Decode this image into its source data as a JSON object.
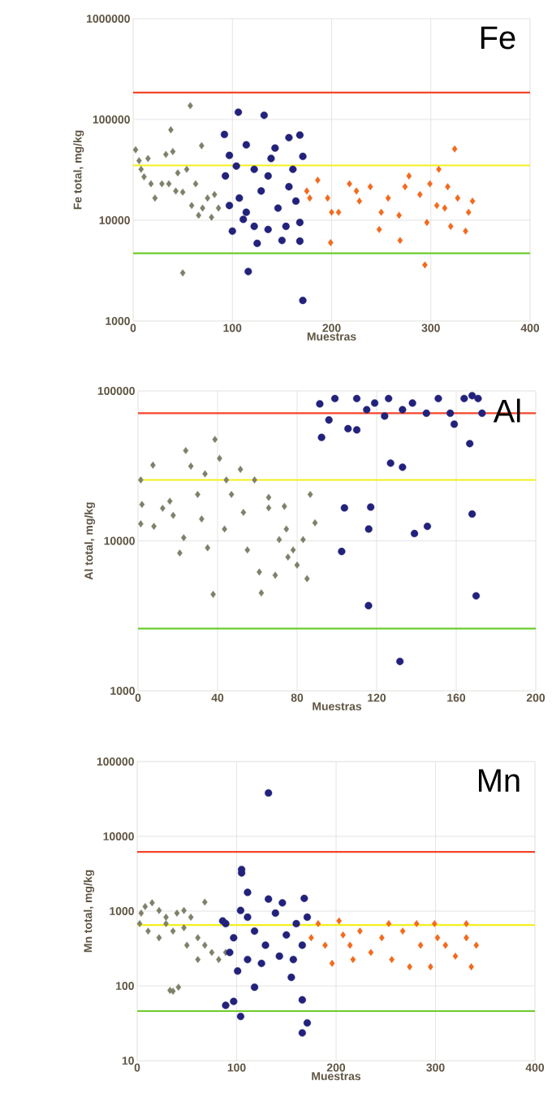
{
  "chart_data": [
    {
      "type": "scatter",
      "xlabel": "Muestras",
      "ylabel": "Fe total, mg/kg",
      "annotations": [
        "Fe"
      ],
      "log": "y",
      "grid": true,
      "xlim": [
        0,
        400
      ],
      "ylim": [
        1000,
        1000000
      ],
      "xticks": [
        0,
        100,
        200,
        300,
        400
      ],
      "yticks": [
        1000,
        10000,
        100000,
        1000000
      ],
      "ref_lines": [
        {
          "axis": "y",
          "value": 185000,
          "color": "#f4462a"
        },
        {
          "axis": "y",
          "value": 35000,
          "color": "#f2f01e"
        },
        {
          "axis": "y",
          "value": 4700,
          "color": "#6ccc2e"
        }
      ],
      "series": [
        {
          "color": "#7f806a",
          "marker": "diamond",
          "x": [
            57.6,
            38,
            69,
            50,
            2.5,
            8,
            15,
            22,
            29,
            40,
            45,
            50,
            59,
            66,
            79,
            82,
            75,
            54,
            33,
            11,
            18,
            6,
            36,
            63,
            70,
            86,
            43
          ],
          "values": [
            137000,
            79000,
            55000,
            3000,
            50000,
            32000,
            41000,
            16600,
            23000,
            48000,
            29500,
            19000,
            14000,
            11200,
            10700,
            18000,
            16600,
            32000,
            45000,
            27000,
            23000,
            39000,
            23000,
            23000,
            13200,
            13200,
            19500
          ]
        },
        {
          "color": "#22227c",
          "marker": "circle",
          "x": [
            106,
            132,
            92,
            116,
            171,
            168,
            157,
            171,
            114,
            97,
            93,
            100,
            125,
            150,
            168,
            168,
            136,
            114,
            107,
            129,
            146,
            157,
            104,
            139,
            122,
            154,
            136,
            111,
            161,
            143,
            122,
            97,
            164
          ],
          "values": [
            118000,
            110000,
            71000,
            3100,
            1600,
            70000,
            66000,
            43000,
            56000,
            44000,
            27500,
            7800,
            5900,
            6300,
            6200,
            9500,
            27500,
            12000,
            16600,
            19500,
            13200,
            21500,
            34500,
            41000,
            32000,
            8700,
            8100,
            10200,
            32000,
            52000,
            8700,
            14000,
            15500
          ]
        },
        {
          "color": "#f26a1e",
          "marker": "diamond",
          "x": [
            324,
            308,
            199,
            294,
            269,
            335,
            248,
            175,
            186,
            196,
            207,
            218,
            228,
            239,
            257,
            268,
            278,
            289,
            296,
            306,
            317,
            327,
            338,
            342,
            320,
            200,
            250,
            225,
            274,
            299,
            314,
            178
          ],
          "values": [
            51000,
            32000,
            6000,
            3600,
            6300,
            7800,
            8100,
            19500,
            25000,
            16600,
            12000,
            23000,
            15500,
            21500,
            16600,
            11200,
            27500,
            18000,
            9500,
            14000,
            21500,
            16600,
            12000,
            15500,
            8700,
            12000,
            12000,
            19500,
            21500,
            23000,
            13200,
            16600
          ]
        }
      ]
    },
    {
      "type": "scatter",
      "xlabel": "Muestras",
      "ylabel": "Al total, mg/kg",
      "annotations": [
        "Al"
      ],
      "log": "y",
      "grid": true,
      "xlim": [
        0,
        200
      ],
      "ylim": [
        1000,
        100000
      ],
      "xticks": [
        0,
        40,
        80,
        120,
        160,
        200
      ],
      "yticks": [
        1000,
        10000,
        100000
      ],
      "ref_lines": [
        {
          "axis": "y",
          "value": 71000,
          "color": "#f4462a"
        },
        {
          "axis": "y",
          "value": 25500,
          "color": "#f2f01e"
        },
        {
          "axis": "y",
          "value": 2600,
          "color": "#6ccc2e"
        }
      ],
      "series": [
        {
          "color": "#7f806a",
          "marker": "diamond",
          "x": [
            38.7,
            24,
            7.5,
            41,
            26.6,
            1.4,
            2,
            1.4,
            8,
            12.4,
            16,
            17.7,
            23,
            21,
            32,
            35,
            37.8,
            30,
            33.7,
            44.4,
            47,
            51.5,
            53,
            58.6,
            55,
            43.5,
            62,
            61,
            65.7,
            65.7,
            73.6,
            74.6,
            71,
            69,
            78,
            80,
            83,
            85,
            86.6,
            89,
            75.4
          ],
          "values": [
            47500,
            40000,
            32000,
            35500,
            31500,
            25500,
            17500,
            13000,
            12500,
            16500,
            18400,
            14800,
            10500,
            8300,
            14000,
            9000,
            4400,
            20400,
            28000,
            25500,
            20400,
            30000,
            15500,
            25500,
            8700,
            12000,
            4500,
            6200,
            19500,
            16600,
            17000,
            12000,
            10200,
            5900,
            8700,
            6900,
            10200,
            5600,
            20400,
            13200,
            7800
          ]
        },
        {
          "color": "#22227c",
          "marker": "circle",
          "x": [
            91.4,
            92.3,
            99,
            96,
            105.6,
            110,
            110,
            115,
            119,
            124,
            126,
            133,
            138,
            145,
            151,
            157,
            159,
            164,
            168,
            173,
            171,
            166.8,
            127,
            133,
            103.8,
            117,
            116,
            139,
            145.5,
            168,
            102.4,
            115.9,
            170,
            131.7
          ],
          "values": [
            82000,
            49000,
            89000,
            64000,
            56000,
            89000,
            55000,
            75000,
            83000,
            68000,
            89000,
            75000,
            83000,
            71000,
            89000,
            71000,
            60000,
            89000,
            93000,
            71000,
            89000,
            44500,
            33000,
            31000,
            16600,
            16800,
            12000,
            11200,
            12500,
            15100,
            8500,
            3700,
            4300,
            1570
          ]
        }
      ]
    },
    {
      "type": "scatter",
      "xlabel": "Muestras",
      "ylabel": "Mn total, mg/kg",
      "annotations": [
        "Mn"
      ],
      "log": "y",
      "grid": true,
      "xlim": [
        0,
        400
      ],
      "ylim": [
        10,
        100000
      ],
      "xticks": [
        0,
        100,
        200,
        300,
        400
      ],
      "yticks": [
        10,
        100,
        1000,
        10000,
        100000
      ],
      "ref_lines": [
        {
          "axis": "y",
          "value": 6200,
          "color": "#f4462a"
        },
        {
          "axis": "y",
          "value": 650,
          "color": "#f2f01e"
        },
        {
          "axis": "y",
          "value": 46,
          "color": "#6ccc2e"
        }
      ],
      "series": [
        {
          "color": "#7f806a",
          "marker": "diamond",
          "x": [
            15,
            4,
            2.5,
            22,
            29,
            40,
            47,
            54,
            61,
            68,
            75,
            82,
            89,
            68,
            11,
            22,
            36,
            50,
            61,
            33,
            41.5,
            36,
            29,
            47,
            8
          ],
          "values": [
            1290,
            940,
            680,
            1020,
            680,
            940,
            600,
            830,
            440,
            350,
            280,
            225,
            280,
            1320,
            540,
            440,
            540,
            350,
            225,
            87,
            96,
            85,
            830,
            1020,
            1150
          ]
        },
        {
          "color": "#22227c",
          "marker": "circle",
          "x": [
            132,
            105,
            105,
            111,
            168,
            171,
            101,
            118,
            155,
            89,
            97,
            104,
            166,
            171,
            166,
            89,
            93,
            111,
            125,
            132,
            139,
            118,
            143,
            157,
            160,
            111,
            97,
            129,
            150,
            104,
            86,
            166,
            146
          ],
          "values": [
            38000,
            3600,
            3240,
            1780,
            1480,
            830,
            158,
            96,
            130,
            55,
            62,
            39,
            65,
            32,
            23.5,
            680,
            280,
            225,
            200,
            1450,
            940,
            540,
            250,
            225,
            680,
            830,
            440,
            350,
            480,
            1020,
            740,
            350,
            1290
          ]
        },
        {
          "color": "#f26a1e",
          "marker": "diamond",
          "x": [
            175,
            182,
            196,
            203,
            214,
            224,
            235,
            246,
            256,
            267,
            274,
            285,
            295,
            299,
            310,
            320,
            331,
            336,
            341,
            331,
            217,
            189,
            281,
            253,
            207,
            302
          ],
          "values": [
            440,
            680,
            200,
            740,
            350,
            540,
            280,
            440,
            225,
            540,
            180,
            350,
            180,
            680,
            350,
            250,
            680,
            180,
            350,
            440,
            225,
            350,
            680,
            680,
            480,
            440
          ]
        }
      ]
    }
  ]
}
